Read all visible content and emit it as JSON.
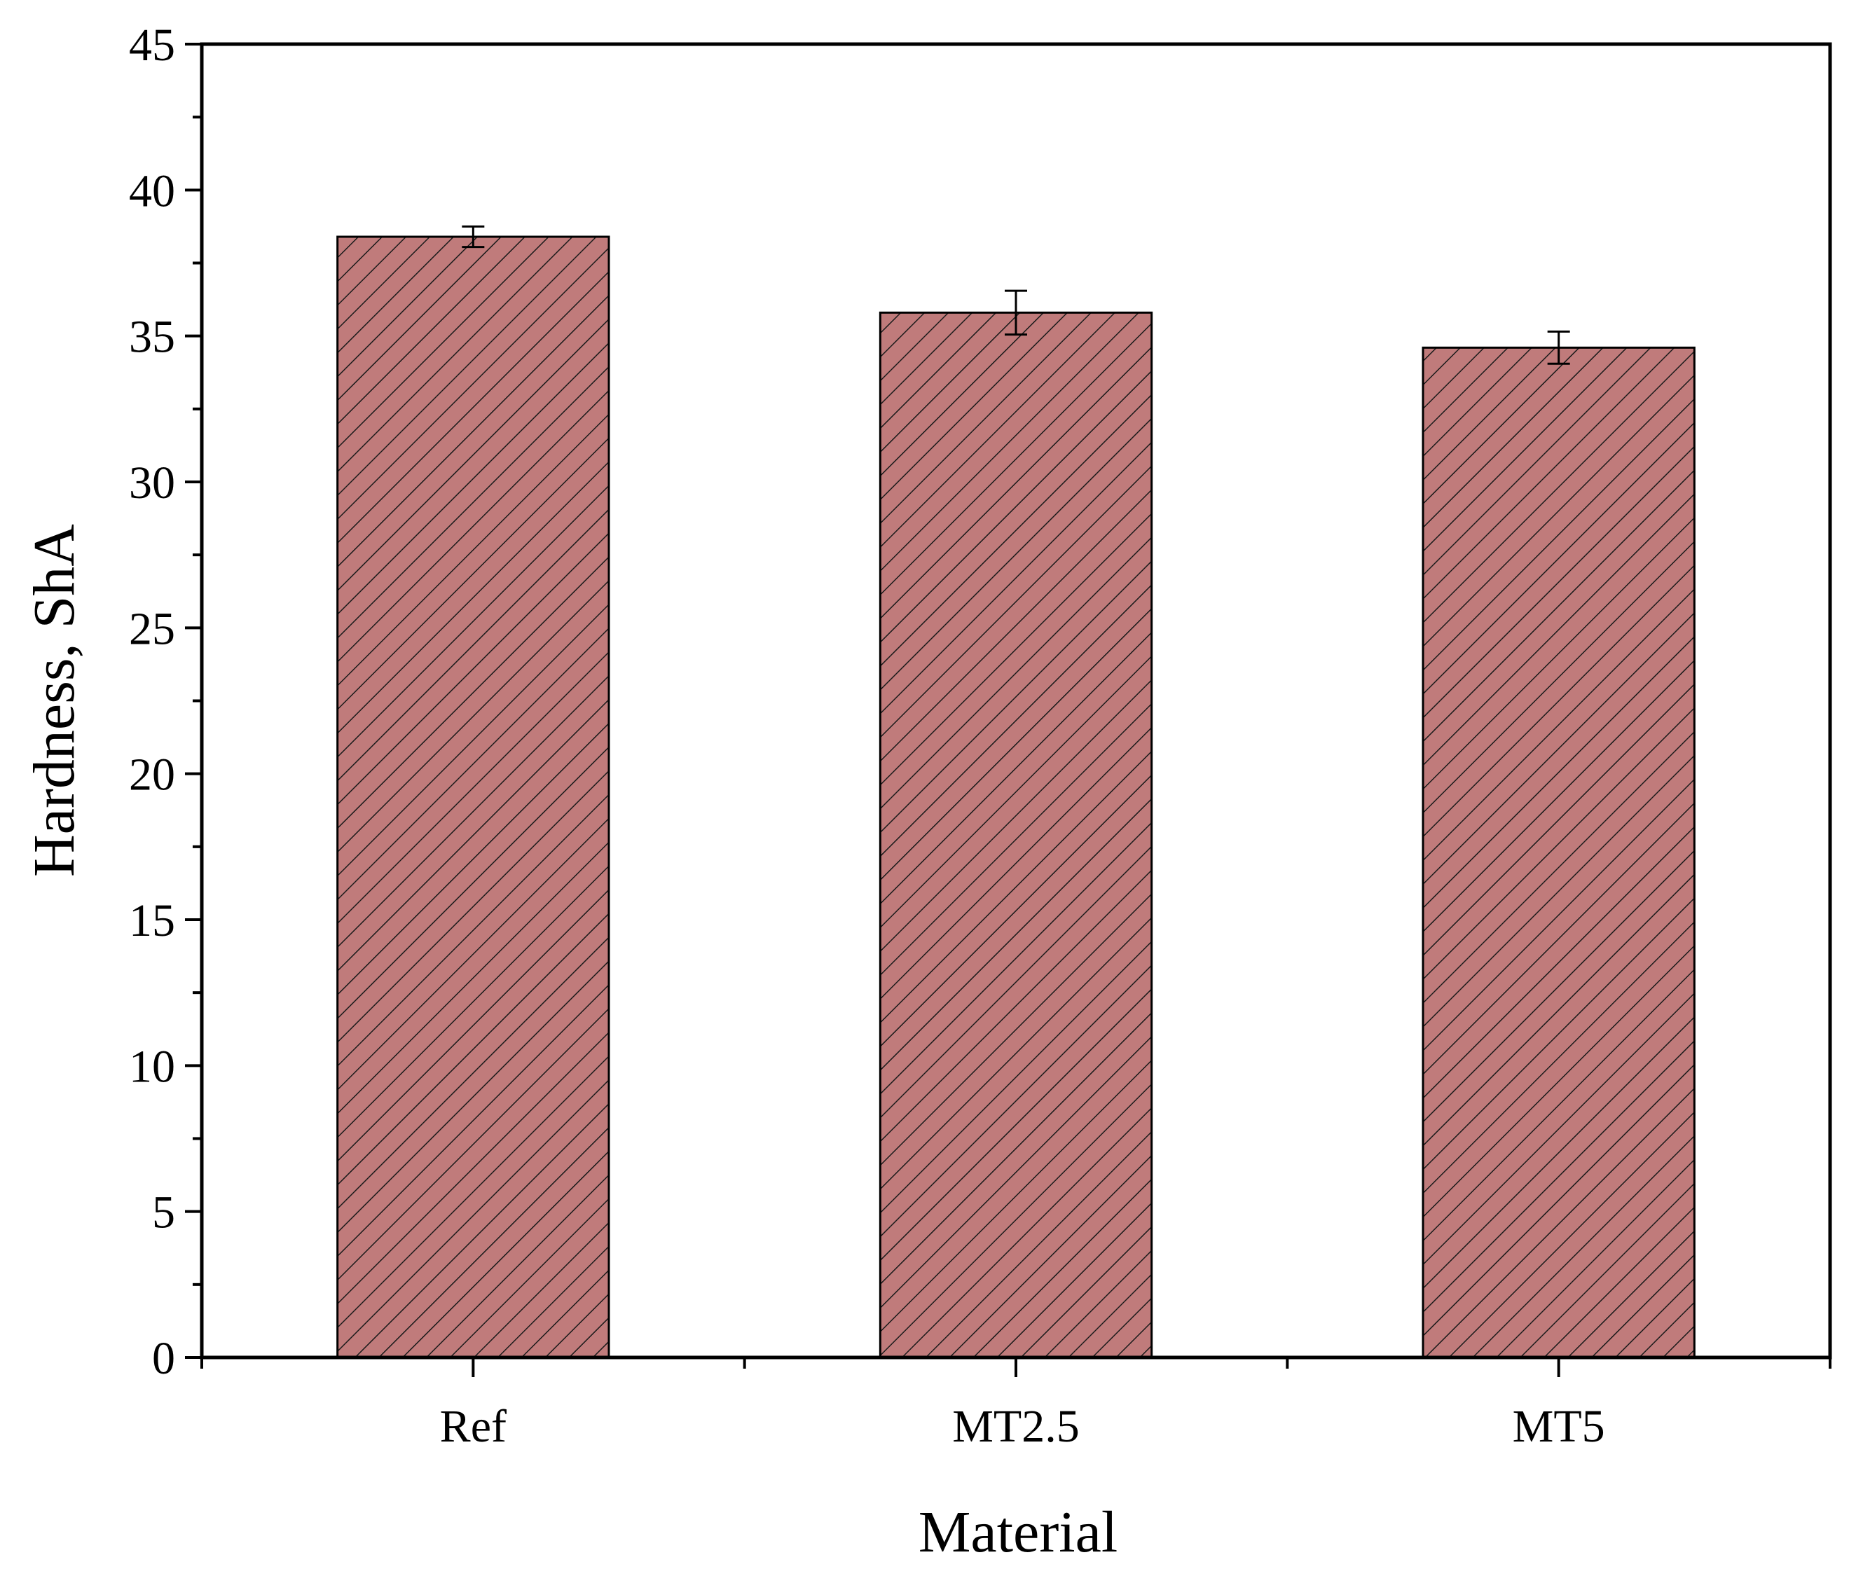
{
  "chart_data": {
    "type": "bar",
    "title": "",
    "xlabel": "Material",
    "ylabel": "Hardness, ShA",
    "categories": [
      "Ref",
      "MT2.5",
      "MT5"
    ],
    "series": [
      {
        "values": [
          38.4,
          35.8,
          34.6
        ],
        "errors": [
          0.35,
          0.75,
          0.55
        ]
      }
    ],
    "ylim": [
      0,
      45
    ],
    "yticks": [
      "0",
      "5",
      "10",
      "15",
      "20",
      "25",
      "30",
      "35",
      "40",
      "45"
    ],
    "grid": false,
    "legend": "none",
    "bar_color": "#c07b7b",
    "hatch": "diagonal"
  }
}
